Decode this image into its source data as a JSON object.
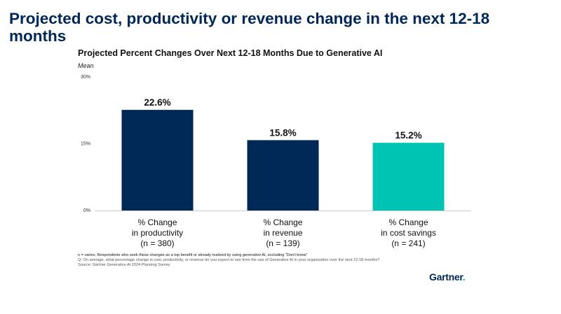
{
  "slide": {
    "title": "Projected cost, productivity or revenue change in the next 12-18 months"
  },
  "chart_data": {
    "type": "bar",
    "title": "Projected Percent Changes Over Next 12-18 Months Due to Generative AI",
    "subtitle": "Mean",
    "categories": [
      [
        "% Change",
        "in productivity",
        "(n = 380)"
      ],
      [
        "% Change",
        "in revenue",
        "(n = 139)"
      ],
      [
        "% Change",
        "in cost savings",
        "(n = 241)"
      ]
    ],
    "values": [
      22.6,
      15.8,
      15.2
    ],
    "data_labels": [
      "22.6%",
      "15.8%",
      "15.2%"
    ],
    "bar_colors": [
      "#002856",
      "#002856",
      "#00c4b3"
    ],
    "ylim": [
      0,
      30
    ],
    "yticks": [
      0,
      15,
      30
    ],
    "ytick_labels": [
      "0%",
      "15%",
      "30%"
    ],
    "grid": false
  },
  "footnotes": [
    "n = varies, Respondents who seek these changes as a top benefit or already realized by using generative AI, excluding \"Don't know\"",
    "Q: On average, what percentage change in cost, productivity, or revenue do you expect to see from the use of Generative AI in your organization over the next 12-18 months?",
    "Source: Gartner Generative AI 2024 Planning Survey"
  ],
  "logo": {
    "text": "Gartner",
    "dot": ".",
    "accent_color": "#00a3b4"
  }
}
